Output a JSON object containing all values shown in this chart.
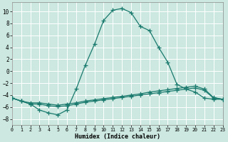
{
  "xlabel": "Humidex (Indice chaleur)",
  "bg_color": "#cce8e0",
  "line_color": "#1a7a6e",
  "grid_color": "#ffffff",
  "xlim": [
    0,
    23
  ],
  "ylim": [
    -9,
    11.5
  ],
  "yticks": [
    -8,
    -6,
    -4,
    -2,
    0,
    2,
    4,
    6,
    8,
    10
  ],
  "xticks": [
    0,
    1,
    2,
    3,
    4,
    5,
    6,
    7,
    8,
    9,
    10,
    11,
    12,
    13,
    14,
    15,
    16,
    17,
    18,
    19,
    20,
    21,
    22,
    23
  ],
  "curve1_x": [
    0,
    1,
    2,
    3,
    4,
    5,
    6,
    7,
    8,
    9,
    10,
    11,
    12,
    13,
    14,
    15,
    16,
    17,
    18,
    19,
    20,
    21,
    22,
    23
  ],
  "curve1_y": [
    -4.5,
    -5.0,
    -5.5,
    -6.5,
    -7.0,
    -7.3,
    -6.5,
    -3.0,
    1.0,
    4.5,
    8.5,
    10.2,
    10.5,
    9.8,
    7.5,
    6.8,
    4.0,
    1.5,
    -2.2,
    -3.0,
    -3.5,
    -4.5,
    -4.7,
    -4.7
  ],
  "curve2_x": [
    0,
    1,
    2,
    3,
    4,
    5,
    6,
    7,
    8,
    9,
    10,
    11,
    12,
    13,
    14,
    15,
    16,
    17,
    18,
    19,
    20,
    21,
    22,
    23
  ],
  "curve2_y": [
    -4.5,
    -5.0,
    -5.5,
    -5.5,
    -5.8,
    -5.9,
    -5.8,
    -5.5,
    -5.2,
    -5.0,
    -4.8,
    -4.6,
    -4.4,
    -4.2,
    -4.0,
    -3.8,
    -3.6,
    -3.4,
    -3.2,
    -3.0,
    -2.8,
    -3.2,
    -4.5,
    -4.7
  ],
  "curve3_x": [
    0,
    1,
    2,
    3,
    4,
    5,
    6,
    7,
    8,
    9,
    10,
    11,
    12,
    13,
    14,
    15,
    16,
    17,
    18,
    19,
    20,
    21,
    22,
    23
  ],
  "curve3_y": [
    -4.5,
    -5.0,
    -5.3,
    -5.3,
    -5.5,
    -5.7,
    -5.5,
    -5.3,
    -5.0,
    -4.8,
    -4.6,
    -4.4,
    -4.2,
    -4.0,
    -3.8,
    -3.5,
    -3.3,
    -3.1,
    -2.9,
    -2.7,
    -2.5,
    -3.0,
    -4.4,
    -4.7
  ]
}
